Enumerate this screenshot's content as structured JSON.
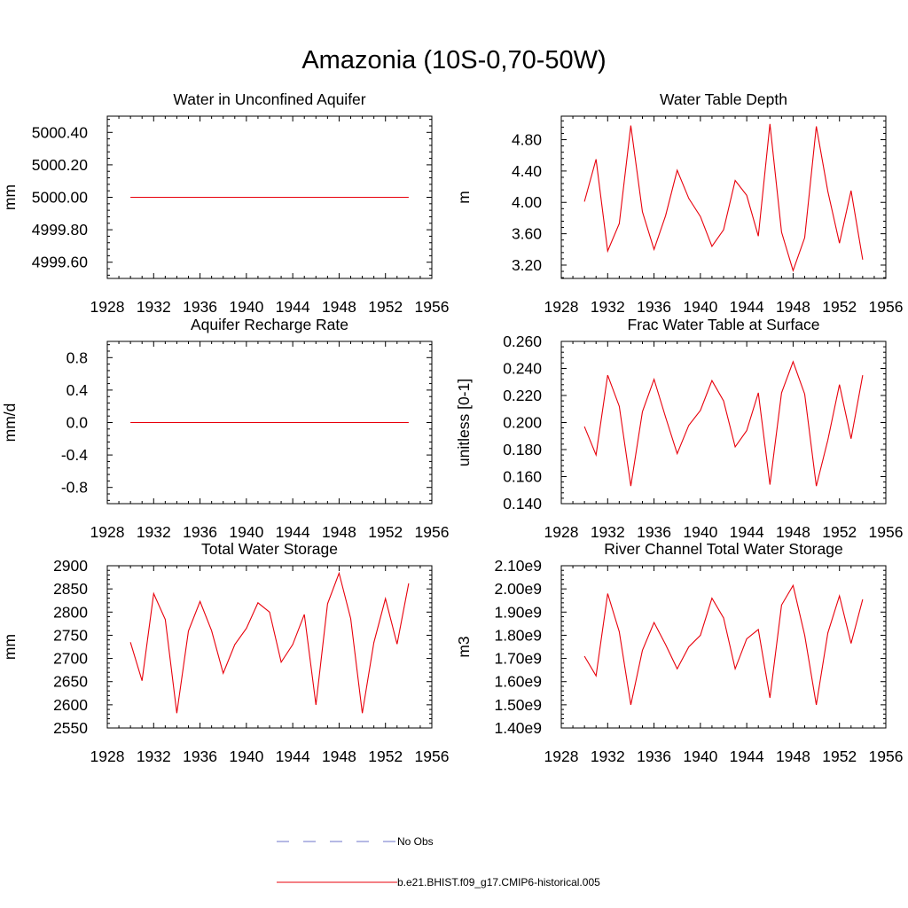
{
  "title": "Amazonia (10S-0,70-50W)",
  "legend": [
    {
      "label": "No Obs",
      "color": "#6b73c8",
      "dash": true
    },
    {
      "label": "b.e21.BHIST.f09_g17.CMIP6-historical.005",
      "color": "#e8000b",
      "dash": false
    }
  ],
  "line_color": "#e8000b",
  "chart_data": [
    {
      "type": "line",
      "title": "Water in Unconfined Aquifer",
      "xlabel": "",
      "ylabel": "mm",
      "xlim": [
        1928,
        1956
      ],
      "ylim": [
        4999.5,
        5000.5
      ],
      "xticks": [
        1928,
        1932,
        1936,
        1940,
        1944,
        1948,
        1952,
        1956
      ],
      "yticks": [
        4999.6,
        4999.8,
        5000.0,
        5000.2,
        5000.4
      ],
      "ytick_decimals": 2,
      "x": [
        1930,
        1931,
        1932,
        1933,
        1934,
        1935,
        1936,
        1937,
        1938,
        1939,
        1940,
        1941,
        1942,
        1943,
        1944,
        1945,
        1946,
        1947,
        1948,
        1949,
        1950,
        1951,
        1952,
        1953,
        1954
      ],
      "values": [
        5000.0,
        5000.0,
        5000.0,
        5000.0,
        5000.0,
        5000.0,
        5000.0,
        5000.0,
        5000.0,
        5000.0,
        5000.0,
        5000.0,
        5000.0,
        5000.0,
        5000.0,
        5000.0,
        5000.0,
        5000.0,
        5000.0,
        5000.0,
        5000.0,
        5000.0,
        5000.0,
        5000.0,
        5000.0
      ]
    },
    {
      "type": "line",
      "title": "Water Table Depth",
      "xlabel": "",
      "ylabel": "m",
      "xlim": [
        1928,
        1956
      ],
      "ylim": [
        3.03,
        5.1
      ],
      "xticks": [
        1928,
        1932,
        1936,
        1940,
        1944,
        1948,
        1952,
        1956
      ],
      "yticks": [
        3.2,
        3.6,
        4.0,
        4.4,
        4.8
      ],
      "ytick_decimals": 2,
      "x": [
        1930,
        1931,
        1932,
        1933,
        1934,
        1935,
        1936,
        1937,
        1938,
        1939,
        1940,
        1941,
        1942,
        1943,
        1944,
        1945,
        1946,
        1947,
        1948,
        1949,
        1950,
        1951,
        1952,
        1953,
        1954
      ],
      "values": [
        4.01,
        4.55,
        3.38,
        3.73,
        4.98,
        3.88,
        3.4,
        3.83,
        4.41,
        4.05,
        3.82,
        3.44,
        3.65,
        4.28,
        4.09,
        3.57,
        5.0,
        3.62,
        3.13,
        3.55,
        4.97,
        4.14,
        3.48,
        4.15,
        3.27
      ]
    },
    {
      "type": "line",
      "title": "Aquifer Recharge Rate",
      "xlabel": "",
      "ylabel": "mm/d",
      "xlim": [
        1928,
        1956
      ],
      "ylim": [
        -1.0,
        1.0
      ],
      "xticks": [
        1928,
        1932,
        1936,
        1940,
        1944,
        1948,
        1952,
        1956
      ],
      "yticks": [
        -0.8,
        -0.4,
        0.0,
        0.4,
        0.8
      ],
      "ytick_decimals": 1,
      "x": [
        1930,
        1931,
        1932,
        1933,
        1934,
        1935,
        1936,
        1937,
        1938,
        1939,
        1940,
        1941,
        1942,
        1943,
        1944,
        1945,
        1946,
        1947,
        1948,
        1949,
        1950,
        1951,
        1952,
        1953,
        1954
      ],
      "values": [
        0.0,
        0.0,
        0.0,
        0.0,
        0.0,
        0.0,
        0.0,
        0.0,
        0.0,
        0.0,
        0.0,
        0.0,
        0.0,
        0.0,
        0.0,
        0.0,
        0.0,
        0.0,
        0.0,
        0.0,
        0.0,
        0.0,
        0.0,
        0.0,
        0.0
      ]
    },
    {
      "type": "line",
      "title": "Frac Water Table at Surface",
      "xlabel": "",
      "ylabel": "unitless [0-1]",
      "xlim": [
        1928,
        1956
      ],
      "ylim": [
        0.14,
        0.26
      ],
      "xticks": [
        1928,
        1932,
        1936,
        1940,
        1944,
        1948,
        1952,
        1956
      ],
      "yticks": [
        0.14,
        0.16,
        0.18,
        0.2,
        0.22,
        0.24,
        0.26
      ],
      "ytick_decimals": 3,
      "x": [
        1930,
        1931,
        1932,
        1933,
        1934,
        1935,
        1936,
        1937,
        1938,
        1939,
        1940,
        1941,
        1942,
        1943,
        1944,
        1945,
        1946,
        1947,
        1948,
        1949,
        1950,
        1951,
        1952,
        1953,
        1954
      ],
      "values": [
        0.197,
        0.176,
        0.235,
        0.212,
        0.153,
        0.208,
        0.232,
        0.204,
        0.177,
        0.198,
        0.209,
        0.231,
        0.216,
        0.182,
        0.194,
        0.222,
        0.154,
        0.222,
        0.245,
        0.221,
        0.153,
        0.187,
        0.228,
        0.188,
        0.235
      ]
    },
    {
      "type": "line",
      "title": "Total Water Storage",
      "xlabel": "",
      "ylabel": "mm",
      "xlim": [
        1928,
        1956
      ],
      "ylim": [
        2550,
        2900
      ],
      "xticks": [
        1928,
        1932,
        1936,
        1940,
        1944,
        1948,
        1952,
        1956
      ],
      "yticks": [
        2550,
        2600,
        2650,
        2700,
        2750,
        2800,
        2850,
        2900
      ],
      "ytick_decimals": 0,
      "x": [
        1930,
        1931,
        1932,
        1933,
        1934,
        1935,
        1936,
        1937,
        1938,
        1939,
        1940,
        1941,
        1942,
        1943,
        1944,
        1945,
        1946,
        1947,
        1948,
        1949,
        1950,
        1951,
        1952,
        1953,
        1954
      ],
      "values": [
        2735,
        2652,
        2840,
        2784,
        2582,
        2759,
        2823,
        2760,
        2668,
        2730,
        2765,
        2820,
        2800,
        2692,
        2730,
        2795,
        2600,
        2818,
        2884,
        2786,
        2582,
        2734,
        2829,
        2731,
        2862
      ]
    },
    {
      "type": "line",
      "title": "River Channel Total Water Storage",
      "xlabel": "",
      "ylabel": "m3",
      "xlim": [
        1928,
        1956
      ],
      "ylim": [
        1.4,
        2.1
      ],
      "xticks": [
        1928,
        1932,
        1936,
        1940,
        1944,
        1948,
        1952,
        1956
      ],
      "yticks": [
        1.4,
        1.5,
        1.6,
        1.7,
        1.8,
        1.9,
        2.0,
        2.1
      ],
      "ytick_decimals": 2,
      "ytick_suffix": "e9",
      "x": [
        1930,
        1931,
        1932,
        1933,
        1934,
        1935,
        1936,
        1937,
        1938,
        1939,
        1940,
        1941,
        1942,
        1943,
        1944,
        1945,
        1946,
        1947,
        1948,
        1949,
        1950,
        1951,
        1952,
        1953,
        1954
      ],
      "values": [
        1.71,
        1.625,
        1.98,
        1.815,
        1.5,
        1.735,
        1.855,
        1.76,
        1.655,
        1.75,
        1.8,
        1.96,
        1.875,
        1.655,
        1.785,
        1.825,
        1.53,
        1.93,
        2.015,
        1.8,
        1.5,
        1.81,
        1.97,
        1.765,
        1.955
      ]
    }
  ]
}
